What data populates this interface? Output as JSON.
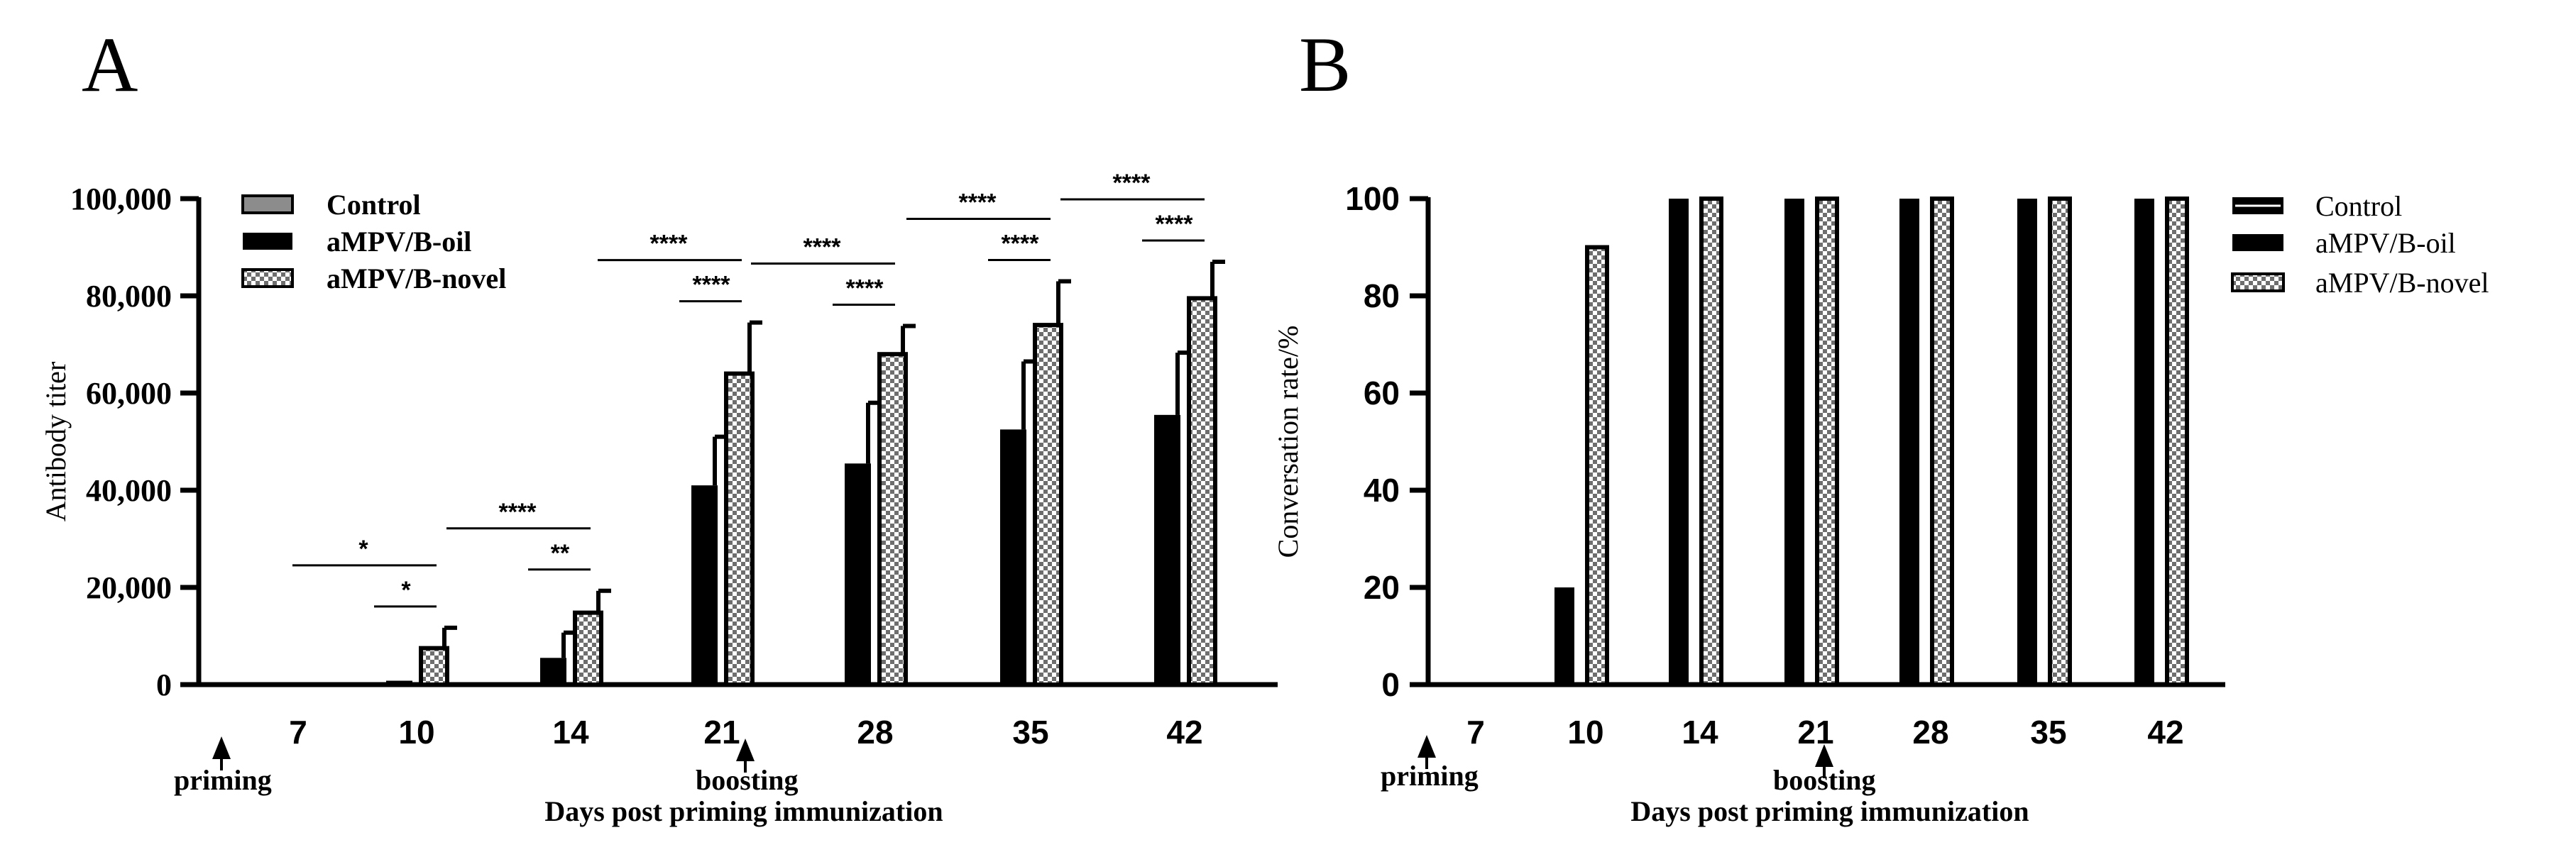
{
  "colors": {
    "ink": "#000000",
    "control_fill": "#8c8c8c",
    "checker_a": "#6e6e6e",
    "checker_b": "#ffffff"
  },
  "panelA": {
    "panel_label": "A",
    "legend": [
      "Control",
      "aMPV/B-oil",
      "aMPV/B-novel"
    ],
    "annotations": {
      "priming": "priming",
      "boosting": "boosting"
    },
    "chart_data": {
      "type": "bar",
      "title": "",
      "xlabel": "Days post priming immunization",
      "ylabel": "Antibody titer",
      "ylim": [
        0,
        100000
      ],
      "yticks": [
        0,
        20000,
        40000,
        60000,
        80000,
        100000
      ],
      "ytick_labels": [
        "0",
        "20,000",
        "40,000",
        "60,000",
        "80,000",
        "100,000"
      ],
      "categories": [
        "7",
        "10",
        "14",
        "21",
        "28",
        "35",
        "42"
      ],
      "series": [
        {
          "name": "Control",
          "values": [
            0,
            0,
            0,
            0,
            0,
            0,
            0
          ],
          "errors": [
            0,
            0,
            0,
            0,
            0,
            0,
            0
          ]
        },
        {
          "name": "aMPV/B-oil",
          "values": [
            0,
            800,
            5500,
            41000,
            45500,
            52500,
            55500
          ],
          "errors": [
            0,
            0,
            5200,
            10000,
            12500,
            14000,
            12800
          ]
        },
        {
          "name": "aMPV/B-novel",
          "values": [
            0,
            7500,
            14800,
            64000,
            68000,
            74000,
            79500
          ],
          "errors": [
            0,
            4200,
            4500,
            10500,
            5800,
            9000,
            7500
          ]
        }
      ],
      "significance": [
        {
          "category": "10",
          "vs_control": "*",
          "vs_oil": "*"
        },
        {
          "category": "14",
          "vs_control": "****",
          "vs_oil": "**"
        },
        {
          "category": "21",
          "vs_control": "****",
          "vs_oil": "****"
        },
        {
          "category": "28",
          "vs_control": "****",
          "vs_oil": "****"
        },
        {
          "category": "35",
          "vs_control": "****",
          "vs_oil": "****"
        },
        {
          "category": "42",
          "vs_control": "****",
          "vs_oil": "****"
        }
      ]
    }
  },
  "panelB": {
    "panel_label": "B",
    "legend": [
      "Control",
      "aMPV/B-oil",
      "aMPV/B-novel"
    ],
    "annotations": {
      "priming": "priming",
      "boosting": "boosting"
    },
    "chart_data": {
      "type": "bar",
      "title": "",
      "xlabel": "Days post priming immunization",
      "ylabel": "Conversation rate/%",
      "ylim": [
        0,
        100
      ],
      "yticks": [
        0,
        20,
        40,
        60,
        80,
        100
      ],
      "ytick_labels": [
        "0",
        "20",
        "40",
        "60",
        "80",
        "100"
      ],
      "categories": [
        "7",
        "10",
        "14",
        "21",
        "28",
        "35",
        "42"
      ],
      "series": [
        {
          "name": "Control",
          "values": [
            0,
            0,
            0,
            0,
            0,
            0,
            0
          ]
        },
        {
          "name": "aMPV/B-oil",
          "values": [
            0,
            20,
            100,
            100,
            100,
            100,
            100
          ]
        },
        {
          "name": "aMPV/B-novel",
          "values": [
            0,
            90,
            100,
            100,
            100,
            100,
            100
          ]
        }
      ]
    }
  }
}
